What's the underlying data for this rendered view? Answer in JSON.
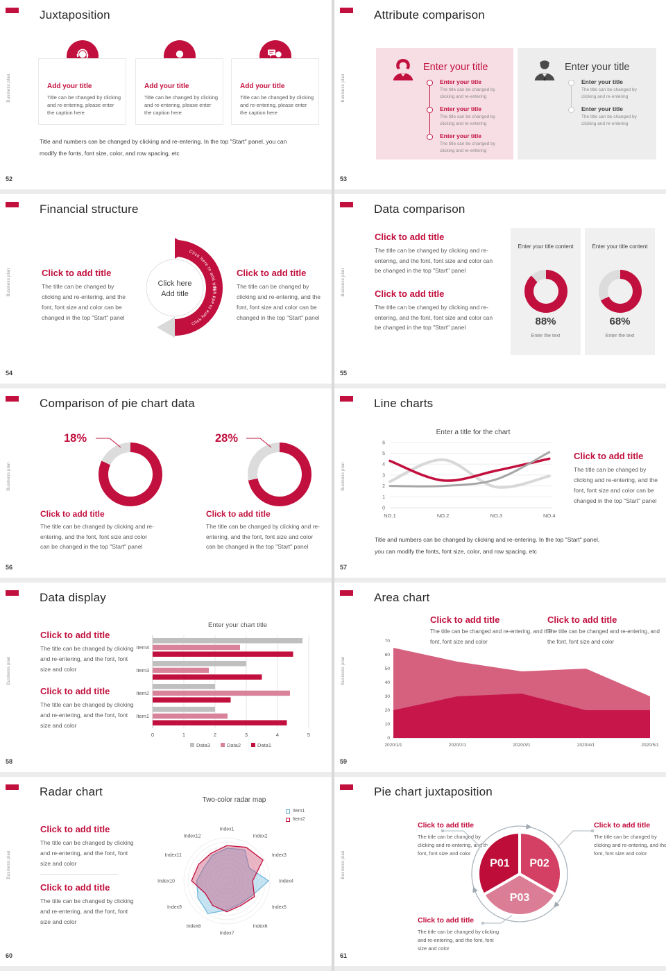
{
  "page": {
    "colors": {
      "accent": "#C2103E",
      "donut_track": "#DCDCDC",
      "gray_series": "#BFBFBF",
      "pink_series": "#D9839B",
      "gray_dark": "#A6A6A6",
      "gray_light": "#D8D8D8",
      "area_back": "#D5617F",
      "area_front": "#C6164A",
      "radar_blue": "#74B9DB",
      "pie1": "#BE0D38",
      "pie2": "#D34064",
      "pie3": "#DC7D96"
    }
  },
  "common": {
    "vertical_label": "Business plan"
  },
  "slides": [
    {
      "number": "52",
      "title": "Juxtaposition",
      "cards": [
        {
          "icon": "support-agent-icon",
          "heading": "Add your title",
          "caption": "Title can be changed by clicking and re-entering, please enter the caption here"
        },
        {
          "icon": "person-icon",
          "heading": "Add your title",
          "caption": "Title can be changed by clicking and re-entering, please enter the caption here"
        },
        {
          "icon": "person-chat-icon",
          "heading": "Add your title",
          "caption": "Title can be changed by clicking and re-entering, please enter the caption here"
        }
      ],
      "footer": "Title and numbers can be changed by clicking and re-entering. In the top \"Start\" panel, you can modify the fonts, font size, color, and row spacing, etc"
    },
    {
      "number": "53",
      "title": "Attribute comparison",
      "panels": [
        {
          "icon": "female-person-icon",
          "heading": "Enter your title",
          "items": [
            {
              "title": "Enter your title",
              "body": "The title can be changed by clicking and re-entering"
            },
            {
              "title": "Enter your title",
              "body": "The title can be changed by clicking and re-entering"
            },
            {
              "title": "Enter your title",
              "body": "The title can be changed by clicking and re-entering"
            }
          ]
        },
        {
          "icon": "male-person-icon",
          "heading": "Enter your title",
          "items": [
            {
              "title": "Enter your title",
              "body": "The title can be changed by clicking and re-entering"
            },
            {
              "title": "Enter your title",
              "body": "The title can be changed by clicking and re-entering"
            }
          ]
        }
      ]
    },
    {
      "number": "54",
      "title": "Financial structure",
      "left": {
        "heading": "Click to add title",
        "body": "The title can be changed by clicking and re-entering, and the font, font size and color can be changed in the top \"Start\" panel"
      },
      "right": {
        "heading": "Click to add title",
        "body": "The title can be changed by clicking and re-entering, and the font, font size and color can be changed in the top \"Start\" panel"
      },
      "center": {
        "line1": "Click here",
        "line2": "Add title",
        "arc_text": "Click here to add title"
      }
    },
    {
      "number": "55",
      "title": "Data comparison",
      "blocks": [
        {
          "heading": "Click to add title",
          "body": "The title can be changed by clicking and re-entering, and the font, font size and color can be changed in the top \"Start\" panel"
        },
        {
          "heading": "Click to add title",
          "body": "The title can be changed by clicking and re-entering, and the font, font size and color can be changed in the top \"Start\" panel"
        }
      ],
      "cards": [
        {
          "label": "Enter your title content",
          "percent_label": "88%",
          "caption": "Enter the text"
        },
        {
          "label": "Enter your title content",
          "percent_label": "68%",
          "caption": "Enter the text"
        }
      ]
    },
    {
      "number": "56",
      "title": "Comparison of pie chart data",
      "donuts": [
        {
          "percent_label": "18%",
          "heading": "Click to add title",
          "body": "The title can be changed by clicking and re-entering, and the font, font size and color can be changed in the top \"Start\" panel"
        },
        {
          "percent_label": "28%",
          "heading": "Click to add title",
          "body": "The title can be changed by clicking and re-entering, and the font, font size and color can be changed in the top \"Start\" panel"
        }
      ]
    },
    {
      "number": "57",
      "title": "Line charts",
      "chart_title": "Enter a title for the chart",
      "block": {
        "heading": "Click to add title",
        "body": "The title can be changed by clicking and re-entering, and the font, font size and color can be changed in the top \"Start\" panel"
      },
      "footer": "Title and numbers can be changed by clicking and re-entering. In the top \"Start\" panel, you can modify the fonts, font size, color, and row spacing, etc"
    },
    {
      "number": "58",
      "title": "Data display",
      "chart_title": "Enter your chart title",
      "blocks": [
        {
          "heading": "Click to add title",
          "body": "The title can be changed by clicking and re-entering, and the font, font size and color"
        },
        {
          "heading": "Click to add title",
          "body": "The title can be changed by clicking and re-entering, and the font, font size and color"
        }
      ]
    },
    {
      "number": "59",
      "title": "Area chart",
      "blocks": [
        {
          "heading": "Click to add title",
          "body": "The title can be changed and re-entering, and the font, font size and color"
        },
        {
          "heading": "Click to add title",
          "body": "The title can be changed and re-entering, and the font, font size and color"
        }
      ]
    },
    {
      "number": "60",
      "title": "Radar chart",
      "chart_title": "Two-color radar map",
      "blocks": [
        {
          "heading": "Click to add title",
          "body": "The title can be changed by clicking and re-entering, and the font, font size and color"
        },
        {
          "heading": "Click to add title",
          "body": "The title can be changed by clicking and re-entering, and the font, font size and color"
        }
      ]
    },
    {
      "number": "61",
      "title": "Pie chart juxtaposition",
      "blocks": [
        {
          "heading": "Click to add title",
          "body": "The title can be changed by clicking and re-entering, and the font, font size and color"
        },
        {
          "heading": "Click to add title",
          "body": "The title can be changed by clicking and re-entering, and the font, font size and color"
        },
        {
          "heading": "Click to add title",
          "body": "The title can be changed by clicking and re-entering, and the font, font size and color"
        }
      ]
    }
  ],
  "chart_data": [
    {
      "slide": "55",
      "type": "donut",
      "cards": [
        {
          "label": "Enter your title content",
          "percent": 88,
          "caption": "Enter the text"
        },
        {
          "label": "Enter your title content",
          "percent": 68,
          "caption": "Enter the text"
        }
      ]
    },
    {
      "slide": "56",
      "type": "donut",
      "donuts": [
        {
          "gray_percent": 18
        },
        {
          "gray_percent": 28
        }
      ]
    },
    {
      "slide": "57",
      "type": "line",
      "title": "Enter a title for the chart",
      "x": [
        "NO.1",
        "NO.2",
        "NO.3",
        "NO.4"
      ],
      "ylim": [
        0,
        6
      ],
      "yticks": [
        0,
        1,
        2,
        3,
        4,
        5,
        6
      ],
      "series": [
        {
          "name": "series-red",
          "values": [
            4.3,
            2.5,
            3.4,
            4.5
          ]
        },
        {
          "name": "series-dark-gray",
          "values": [
            2.0,
            2.0,
            2.6,
            5.1
          ]
        },
        {
          "name": "series-light-gray",
          "values": [
            2.4,
            4.4,
            1.9,
            2.9
          ]
        }
      ]
    },
    {
      "slide": "58",
      "type": "bar",
      "title": "Enter your chart title",
      "xlim": [
        0,
        5
      ],
      "categories_top_down": [
        "Item4",
        "Item3",
        "Item2",
        "Item1"
      ],
      "series": [
        {
          "name": "Data3",
          "values_top_down": [
            4.8,
            3.0,
            2.0,
            2.0
          ]
        },
        {
          "name": "Data2",
          "values_top_down": [
            2.8,
            1.8,
            4.4,
            2.4
          ]
        },
        {
          "name": "Data1",
          "values_top_down": [
            4.5,
            3.5,
            2.5,
            4.3
          ]
        }
      ]
    },
    {
      "slide": "59",
      "type": "area",
      "ylim": [
        0,
        70
      ],
      "x": [
        "2020/1/1",
        "2020/2/1",
        "2020/3/1",
        "2020/4/1",
        "2020/5/1"
      ],
      "series": [
        {
          "name": "series-light",
          "values": [
            65,
            55,
            48,
            50,
            30
          ]
        },
        {
          "name": "series-dark",
          "values": [
            20,
            30,
            32,
            20,
            20
          ]
        }
      ]
    },
    {
      "slide": "60",
      "type": "radar",
      "title": "Two-color radar map",
      "axes": [
        "Index1",
        "Index2",
        "Index3",
        "Index4",
        "Index5",
        "Index6",
        "Index7",
        "Index8",
        "Index9",
        "Index10",
        "Index11",
        "Index12"
      ],
      "rmax": 1,
      "series": [
        {
          "name": "Item1",
          "values": [
            0.76,
            0.83,
            0.6,
            0.97,
            0.68,
            0.62,
            0.68,
            0.88,
            0.78,
            0.7,
            0.62,
            0.68
          ]
        },
        {
          "name": "Item2",
          "values": [
            0.82,
            0.9,
            0.97,
            0.6,
            0.74,
            0.66,
            0.72,
            0.66,
            0.58,
            0.82,
            0.76,
            0.74
          ]
        }
      ]
    },
    {
      "slide": "61",
      "type": "pie",
      "slices": [
        {
          "label": "P01",
          "value": 33.3
        },
        {
          "label": "P02",
          "value": 33.3
        },
        {
          "label": "P03",
          "value": 33.3
        }
      ]
    }
  ]
}
